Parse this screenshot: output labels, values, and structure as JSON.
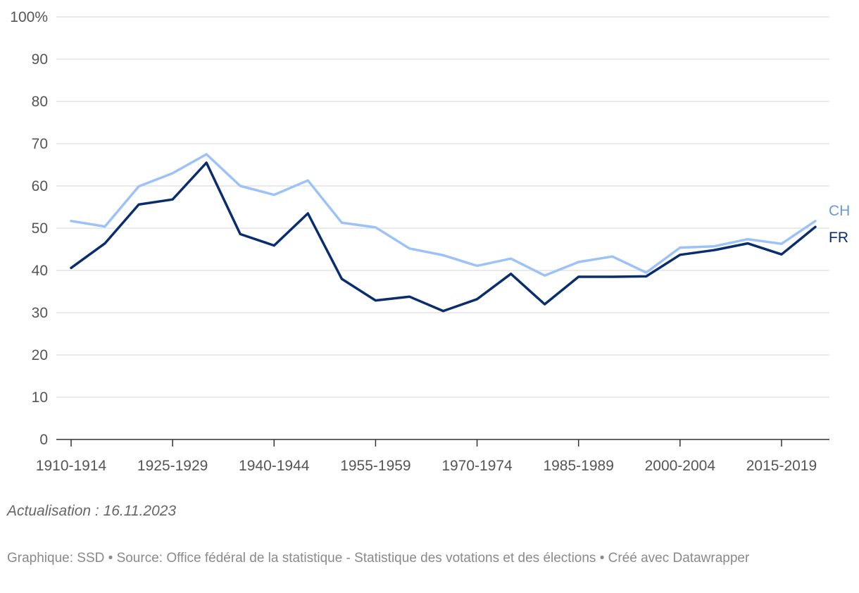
{
  "chart_data": {
    "type": "line",
    "title": "",
    "xlabel": "",
    "ylabel": "",
    "ylim": [
      0,
      100
    ],
    "y_ticks": [
      0,
      10,
      20,
      30,
      40,
      50,
      60,
      70,
      80,
      90,
      100
    ],
    "y_tick_labels": [
      "0",
      "10",
      "20",
      "30",
      "40",
      "50",
      "60",
      "70",
      "80",
      "90",
      "100%"
    ],
    "categories": [
      "1910-1914",
      "1915-1919",
      "1920-1924",
      "1925-1929",
      "1930-1934",
      "1935-1939",
      "1940-1944",
      "1945-1949",
      "1950-1954",
      "1955-1959",
      "1960-1964",
      "1965-1969",
      "1970-1974",
      "1975-1979",
      "1980-1984",
      "1985-1989",
      "1990-1994",
      "1995-1999",
      "2000-2004",
      "2005-2009",
      "2010-2014",
      "2015-2019",
      "2020-2023"
    ],
    "x_tick_labels": [
      "1910-1914",
      "1925-1929",
      "1940-1944",
      "1955-1959",
      "1970-1974",
      "1985-1989",
      "2000-2004",
      "2015-2019"
    ],
    "series": [
      {
        "name": "CH",
        "color": "#9cc2f7",
        "label_color": "#6a98d6",
        "values": [
          51.7,
          50.4,
          59.9,
          63.0,
          67.5,
          60.0,
          57.9,
          61.3,
          51.3,
          50.2,
          45.2,
          43.6,
          41.1,
          42.8,
          38.8,
          42.0,
          43.3,
          39.5,
          45.4,
          45.7,
          47.4,
          46.3,
          51.7
        ]
      },
      {
        "name": "FR",
        "color": "#0a2d6e",
        "label_color": "#0a2d6e",
        "values": [
          40.6,
          46.4,
          55.6,
          56.8,
          65.5,
          48.6,
          45.9,
          53.5,
          38.0,
          32.9,
          33.8,
          30.4,
          33.2,
          39.2,
          32.0,
          38.5,
          38.5,
          38.6,
          43.7,
          44.8,
          46.4,
          43.8,
          50.3
        ]
      }
    ]
  },
  "note": "Actualisation : 16.11.2023",
  "footer": "Graphique: SSD • Source: Office fédéral de la statistique - Statistique des votations et des élections • Créé avec Datawrapper"
}
